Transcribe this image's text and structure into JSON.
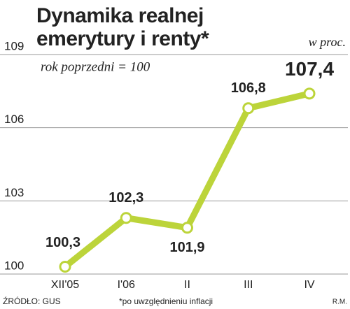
{
  "chart_data": {
    "type": "line",
    "title": "Dynamika realnej emerytury i renty*",
    "unit": "w proc.",
    "subtitle": "rok poprzedni = 100",
    "categories": [
      "XII'05",
      "I'06",
      "II",
      "III",
      "IV"
    ],
    "series": [
      {
        "color": "#bcd43a",
        "values": [
          100.3,
          102.3,
          101.9,
          106.8,
          107.4
        ],
        "value_labels": [
          "100,3",
          "102,3",
          "101,9",
          "106,8",
          "107,4"
        ],
        "value_label_colors": [
          "#222222",
          "#222222",
          "#222222",
          "#222222",
          "#d3344f"
        ]
      }
    ],
    "ylim": [
      100,
      109
    ],
    "yticks": [
      100,
      103,
      106,
      109
    ],
    "grid": true,
    "source": "ŹRÓDŁO: GUS",
    "footnote": "*po uwzględnieniu inflacji",
    "author": "R.M."
  }
}
